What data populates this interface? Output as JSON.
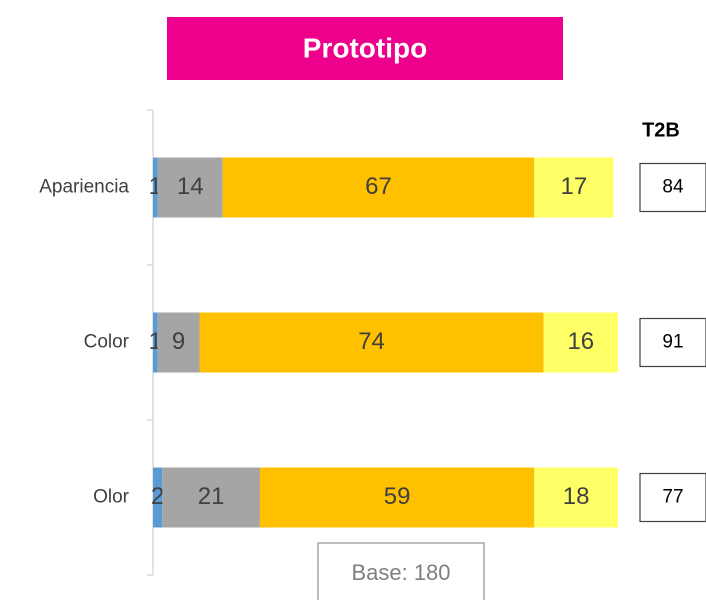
{
  "chart_data": {
    "type": "stacked-barh",
    "title": "Prototipo",
    "categories": [
      "Apariencia",
      "Color",
      "Olor"
    ],
    "series": [
      {
        "color": "#5b9bd5",
        "values": [
          1,
          1,
          2
        ]
      },
      {
        "color": "#a5a5a5",
        "values": [
          14,
          9,
          21
        ]
      },
      {
        "color": "#ffc000",
        "values": [
          67,
          74,
          59
        ]
      },
      {
        "color": "#ffff66",
        "values": [
          17,
          16,
          18
        ]
      }
    ],
    "xlim": [
      0,
      100
    ],
    "t2b": {
      "title": "T2B",
      "values": [
        84,
        91,
        77
      ]
    },
    "annotation": "Base: 180",
    "title_color": "#ec008c"
  }
}
